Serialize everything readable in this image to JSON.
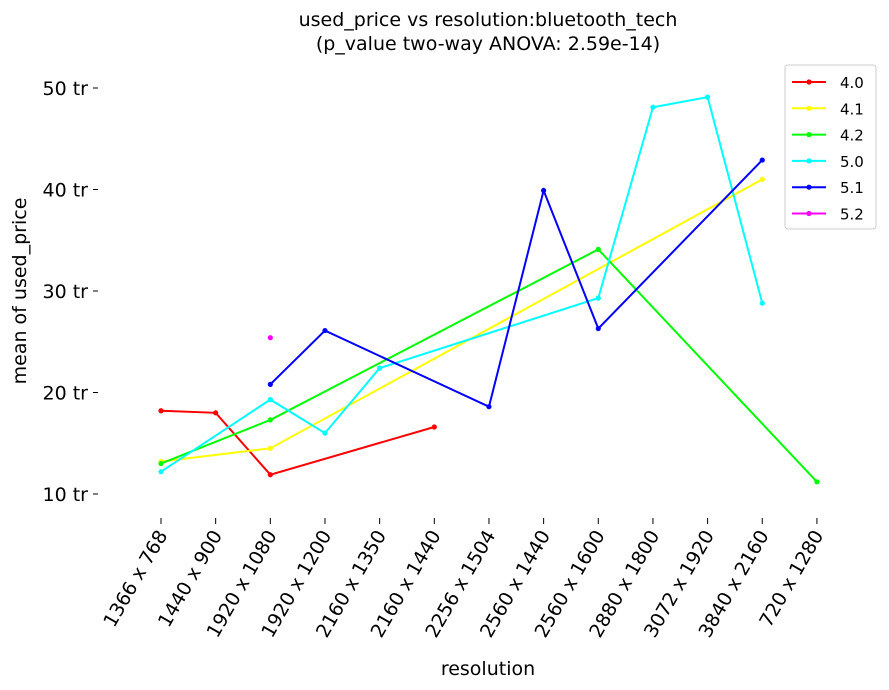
{
  "chart_data": {
    "type": "line",
    "title": "used_price vs resolution:bluetooth_tech",
    "subtitle": "(p_value two-way ANOVA: 2.59e-14)",
    "xlabel": "resolution",
    "ylabel": "mean of used_price",
    "categories": [
      "1366 x 768",
      "1440 x 900",
      "1920 x 1080",
      "1920 x 1200",
      "2160 x 1350",
      "2160 x 1440",
      "2256 x 1504",
      "2560 x 1440",
      "2560 x 1600",
      "2880 x 1800",
      "3072 x 1920",
      "3840 x 2160",
      "720 x 1280"
    ],
    "y_ticks": [
      {
        "value": 10,
        "label": "10 tr"
      },
      {
        "value": 20,
        "label": "20 tr"
      },
      {
        "value": 30,
        "label": "30 tr"
      },
      {
        "value": 40,
        "label": "40 tr"
      },
      {
        "value": 50,
        "label": "50 tr"
      }
    ],
    "ylim": [
      7.3,
      52.4
    ],
    "grid": false,
    "legend_position": "top-right",
    "series": [
      {
        "name": "4.0",
        "color": "#ff0000",
        "values": [
          18.2,
          18.0,
          11.9,
          null,
          null,
          16.6,
          null,
          null,
          null,
          null,
          null,
          null,
          null
        ]
      },
      {
        "name": "4.1",
        "color": "#ffff00",
        "values": [
          13.2,
          null,
          14.5,
          null,
          null,
          null,
          null,
          null,
          null,
          null,
          null,
          41.0,
          null
        ]
      },
      {
        "name": "4.2",
        "color": "#00ff00",
        "values": [
          13.0,
          null,
          17.3,
          null,
          null,
          null,
          null,
          null,
          34.1,
          null,
          null,
          null,
          11.2
        ]
      },
      {
        "name": "5.0",
        "color": "#00ffff",
        "values": [
          12.2,
          null,
          19.3,
          16.0,
          22.4,
          null,
          null,
          null,
          29.3,
          48.1,
          49.1,
          28.8,
          null
        ]
      },
      {
        "name": "5.1",
        "color": "#0000ff",
        "values": [
          null,
          null,
          20.8,
          26.1,
          null,
          null,
          18.6,
          39.9,
          26.3,
          null,
          null,
          42.9,
          null
        ]
      },
      {
        "name": "5.2",
        "color": "#ff00ff",
        "values": [
          null,
          null,
          25.4,
          null,
          null,
          null,
          null,
          null,
          null,
          null,
          null,
          null,
          null
        ]
      }
    ]
  }
}
